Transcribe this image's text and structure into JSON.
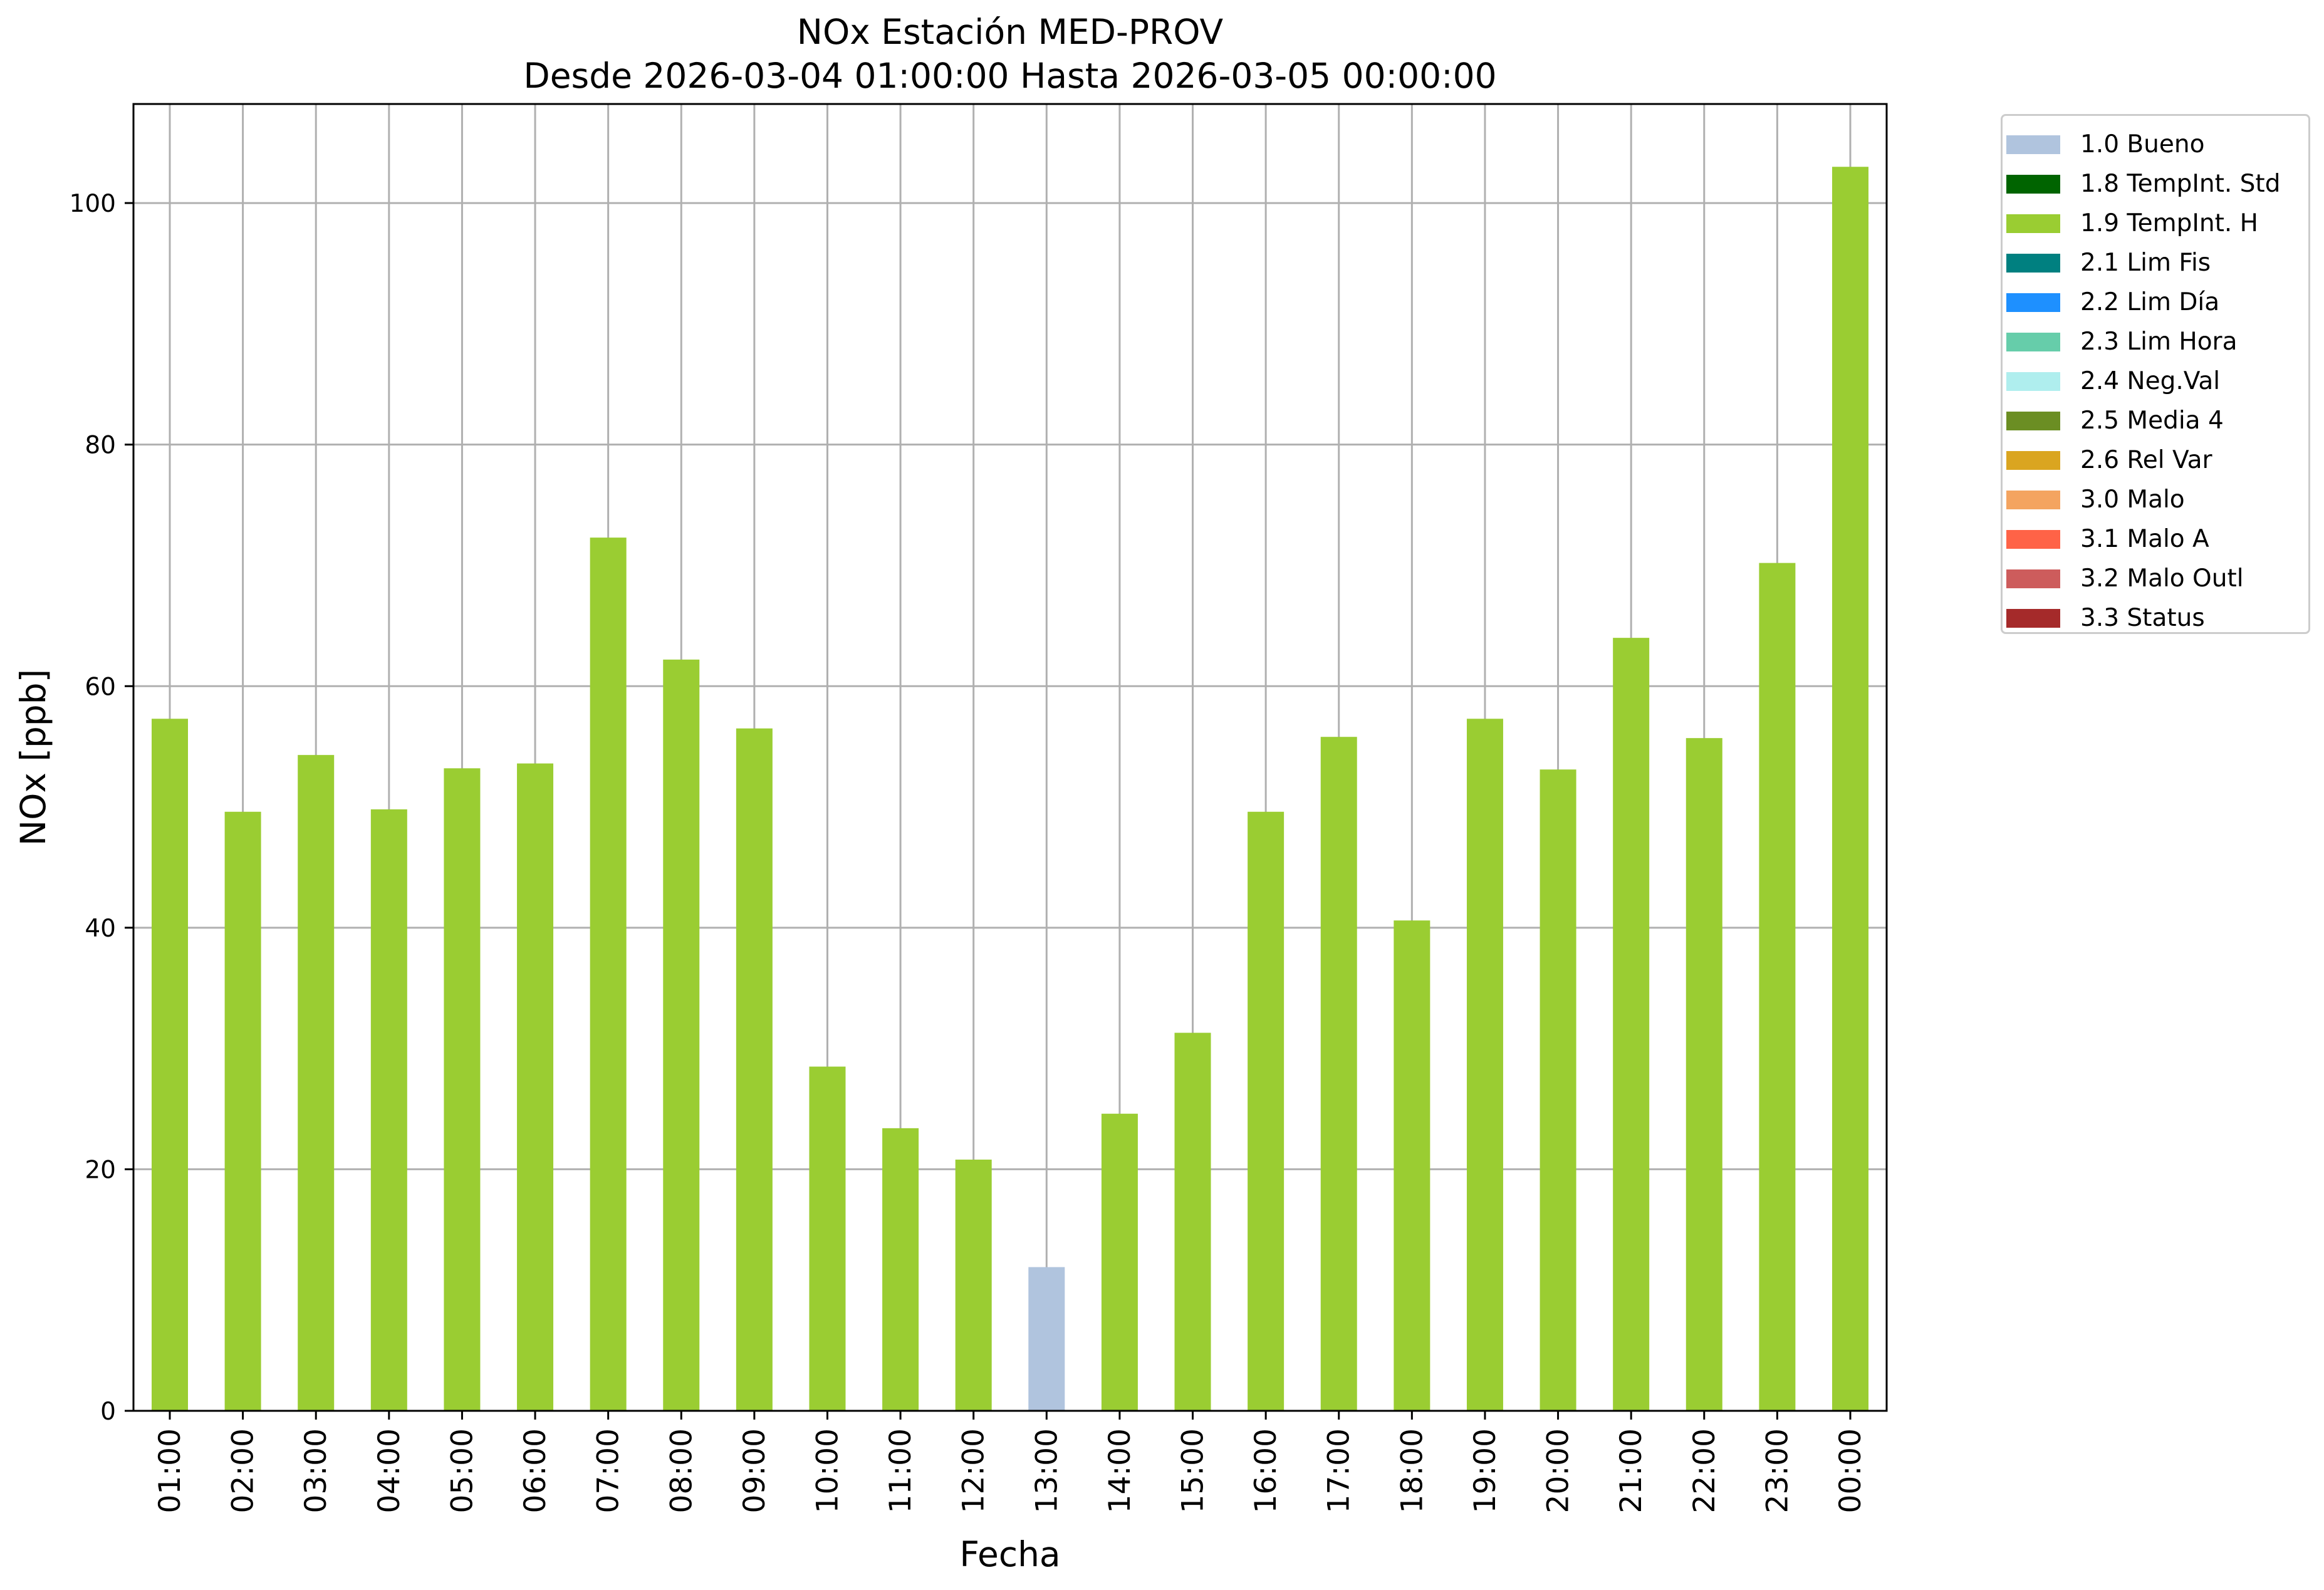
{
  "chart_data": {
    "type": "bar",
    "title": "NOx Estación MED-PROV",
    "subtitle": "Desde 2026-03-04 01:00:00 Hasta 2026-03-05 00:00:00",
    "xlabel": "Fecha",
    "ylabel": "NOx [ppb]",
    "ylim": [
      0,
      108.2
    ],
    "yticks": [
      0,
      20,
      40,
      60,
      80,
      100
    ],
    "grid": true,
    "legend_position": "outside-top-right",
    "categories": [
      "01:00",
      "02:00",
      "03:00",
      "04:00",
      "05:00",
      "06:00",
      "07:00",
      "08:00",
      "09:00",
      "10:00",
      "11:00",
      "12:00",
      "13:00",
      "14:00",
      "15:00",
      "16:00",
      "17:00",
      "18:00",
      "19:00",
      "20:00",
      "21:00",
      "22:00",
      "23:00",
      "00:00"
    ],
    "values": [
      57.3,
      49.6,
      54.3,
      49.8,
      53.2,
      53.6,
      72.3,
      62.2,
      56.5,
      28.5,
      23.4,
      20.8,
      11.9,
      24.6,
      31.3,
      49.6,
      55.8,
      40.6,
      57.3,
      53.1,
      64.0,
      55.7,
      70.2,
      103.0
    ],
    "value_flags": [
      "1.9",
      "1.9",
      "1.9",
      "1.9",
      "1.9",
      "1.9",
      "1.9",
      "1.9",
      "1.9",
      "1.9",
      "1.9",
      "1.9",
      "1.0",
      "1.9",
      "1.9",
      "1.9",
      "1.9",
      "1.9",
      "1.9",
      "1.9",
      "1.9",
      "1.9",
      "1.9",
      "1.9"
    ],
    "legend": [
      {
        "key": "1.0",
        "label": "1.0 Bueno",
        "color": "#b0c4de"
      },
      {
        "key": "1.8",
        "label": "1.8 TempInt. Std",
        "color": "#006400"
      },
      {
        "key": "1.9",
        "label": "1.9 TempInt. H",
        "color": "#9acd32"
      },
      {
        "key": "2.1",
        "label": "2.1 Lim Fis",
        "color": "#008080"
      },
      {
        "key": "2.2",
        "label": "2.2 Lim Día",
        "color": "#1e90ff"
      },
      {
        "key": "2.3",
        "label": "2.3 Lim Hora",
        "color": "#66cdaa"
      },
      {
        "key": "2.4",
        "label": "2.4 Neg.Val",
        "color": "#afeeee"
      },
      {
        "key": "2.5",
        "label": "2.5 Media 4",
        "color": "#6b8e23"
      },
      {
        "key": "2.6",
        "label": "2.6 Rel Var",
        "color": "#daa520"
      },
      {
        "key": "3.0",
        "label": "3.0 Malo",
        "color": "#f4a460"
      },
      {
        "key": "3.1",
        "label": "3.1 Malo A",
        "color": "#ff6347"
      },
      {
        "key": "3.2",
        "label": "3.2 Malo Outl",
        "color": "#cd5c5c"
      },
      {
        "key": "3.3",
        "label": "3.3 Status",
        "color": "#a52a2a"
      }
    ]
  }
}
